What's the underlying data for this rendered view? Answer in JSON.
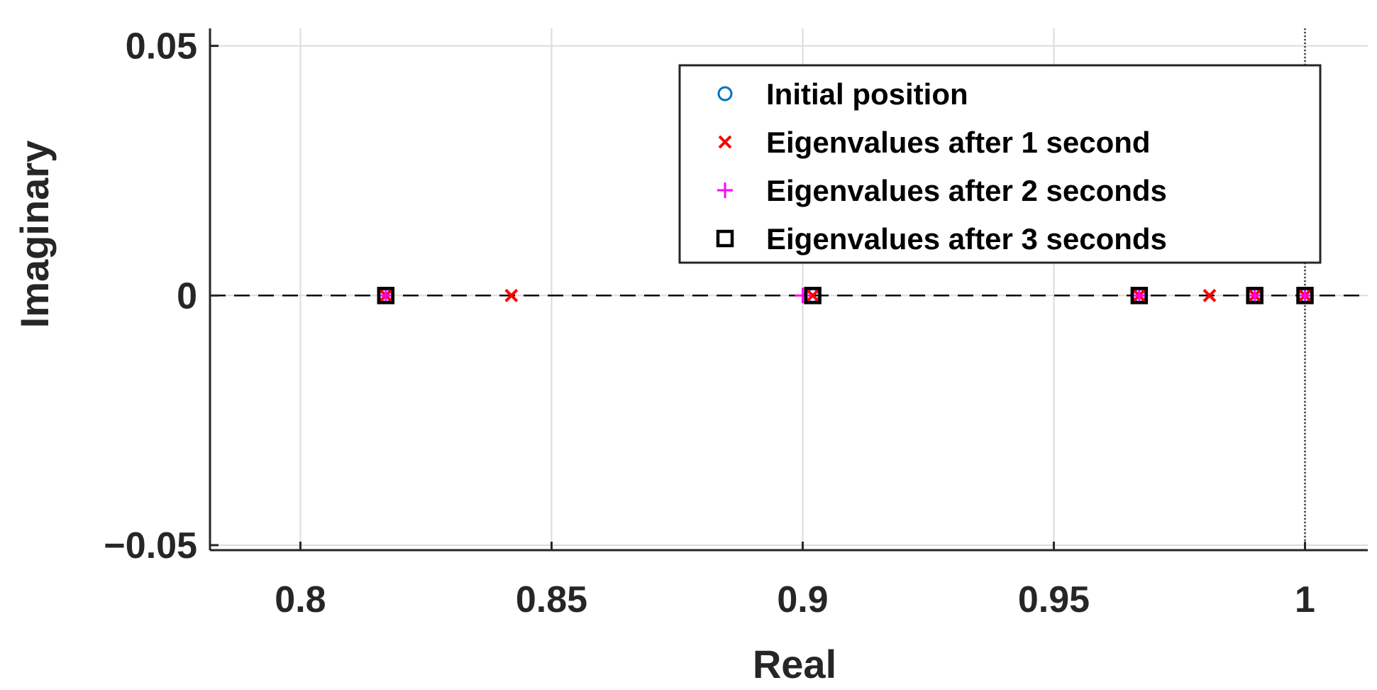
{
  "chart_data": {
    "type": "scatter",
    "xlabel": "Real",
    "ylabel": "Imaginary",
    "xlim": [
      0.782,
      1.0125
    ],
    "ylim": [
      -0.051,
      0.0535
    ],
    "x_ticks": [
      0.8,
      0.85,
      0.9,
      0.95,
      1
    ],
    "x_tick_labels": [
      "0.8",
      "0.85",
      "0.9",
      "0.95",
      "1"
    ],
    "y_ticks": [
      -0.05,
      0,
      0.05
    ],
    "y_tick_labels": [
      "−0.05",
      "0",
      "0.05"
    ],
    "grid": true,
    "reference_lines": {
      "horizontal_dashed_y": 0,
      "vertical_dotted_x": 1
    },
    "legend_position": "top-right",
    "series": [
      {
        "name": "Initial position",
        "marker": "circle",
        "color": "#0072BD",
        "points": [
          [
            0.817,
            0
          ],
          [
            0.902,
            0
          ],
          [
            0.967,
            0
          ],
          [
            0.99,
            0
          ],
          [
            1.0,
            0
          ]
        ]
      },
      {
        "name": "Eigenvalues after 1 second",
        "marker": "x",
        "color": "#FF0000",
        "points": [
          [
            0.817,
            0
          ],
          [
            0.842,
            0
          ],
          [
            0.902,
            0
          ],
          [
            0.967,
            0
          ],
          [
            0.981,
            0
          ],
          [
            0.99,
            0
          ],
          [
            1.0,
            0
          ]
        ]
      },
      {
        "name": "Eigenvalues after 2 seconds",
        "marker": "plus",
        "color": "#FF00FF",
        "points": [
          [
            0.817,
            0
          ],
          [
            0.9,
            0
          ],
          [
            0.967,
            0
          ],
          [
            0.99,
            0
          ],
          [
            1.0,
            0
          ]
        ]
      },
      {
        "name": "Eigenvalues after 3 seconds",
        "marker": "square",
        "color": "#000000",
        "points": [
          [
            0.817,
            0
          ],
          [
            0.902,
            0
          ],
          [
            0.967,
            0
          ],
          [
            0.99,
            0
          ],
          [
            1.0,
            0
          ]
        ]
      }
    ]
  }
}
